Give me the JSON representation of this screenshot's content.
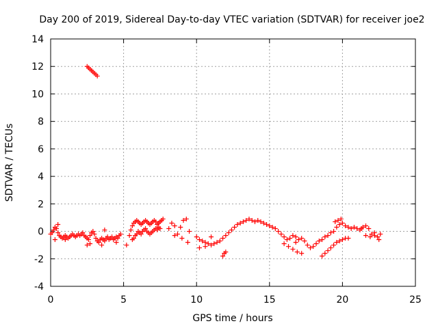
{
  "chart_data": {
    "type": "scatter",
    "title": "Day 200 of 2019, Sidereal Day-to-day VTEC variation (SDTVAR) for receiver joe2",
    "xlabel": "GPS time / hours",
    "ylabel": "SDTVAR / TECUs",
    "xlim": [
      0,
      25
    ],
    "ylim": [
      -4,
      14
    ],
    "xticks": [
      0,
      5,
      10,
      15,
      20,
      25
    ],
    "yticks": [
      -4,
      -2,
      0,
      2,
      4,
      6,
      8,
      10,
      12,
      14
    ],
    "grid": true,
    "marker": "+",
    "color": "#ff0000",
    "series": [
      {
        "name": "SDTVAR",
        "x": [
          2.5,
          2.6,
          2.7,
          2.8,
          2.9,
          3.0,
          3.1,
          3.2,
          0.0,
          0.1,
          0.2,
          0.3,
          0.4,
          0.5,
          0.6,
          0.7,
          0.8,
          0.9,
          1.0,
          1.1,
          1.2,
          1.3,
          1.4,
          1.5,
          1.6,
          1.7,
          1.8,
          1.9,
          2.0,
          2.1,
          2.2,
          2.3,
          2.4,
          2.5,
          2.6,
          2.7,
          2.8,
          2.9,
          3.0,
          3.1,
          3.2,
          3.3,
          3.4,
          3.5,
          3.6,
          3.7,
          3.8,
          3.9,
          4.0,
          4.1,
          4.2,
          4.3,
          4.4,
          4.5,
          4.6,
          4.7,
          4.8,
          0.3,
          0.5,
          1.0,
          2.5,
          2.7,
          3.5,
          3.7,
          4.5,
          5.4,
          5.5,
          5.6,
          5.7,
          5.8,
          5.9,
          6.0,
          6.1,
          6.2,
          6.3,
          6.4,
          6.5,
          6.6,
          6.7,
          6.8,
          6.9,
          7.0,
          7.1,
          7.2,
          7.3,
          7.4,
          7.5,
          7.6,
          7.7,
          5.6,
          5.7,
          5.8,
          5.9,
          6.0,
          6.1,
          6.2,
          6.3,
          6.4,
          6.5,
          6.6,
          6.7,
          6.8,
          6.9,
          7.0,
          7.1,
          7.2,
          7.3,
          7.4,
          7.5,
          5.2,
          8.1,
          8.3,
          8.5,
          8.7,
          8.9,
          9.1,
          9.3,
          9.5,
          8.5,
          9.0,
          9.4,
          10.0,
          10.2,
          10.4,
          10.6,
          10.8,
          11.0,
          11.2,
          11.4,
          11.6,
          11.8,
          12.0,
          12.2,
          12.4,
          12.6,
          12.8,
          13.0,
          13.2,
          13.4,
          13.6,
          13.8,
          14.0,
          14.2,
          14.4,
          14.6,
          14.8,
          15.0,
          15.2,
          15.4,
          11.8,
          11.9,
          12.0,
          10.2,
          10.6,
          11.0,
          15.6,
          15.8,
          16.0,
          16.2,
          16.4,
          16.6,
          16.8,
          17.0,
          17.2,
          17.4,
          17.6,
          17.8,
          18.0,
          18.2,
          18.4,
          18.6,
          18.8,
          19.0,
          19.2,
          19.4,
          19.6,
          19.8,
          20.0,
          20.2,
          20.4,
          20.6,
          20.8,
          21.0,
          21.2,
          21.4,
          21.6,
          21.8,
          22.0,
          22.2,
          22.4,
          22.6,
          16.0,
          16.3,
          16.6,
          16.9,
          17.2,
          16.8,
          18.6,
          18.8,
          19.0,
          19.2,
          19.4,
          19.6,
          19.8,
          20.0,
          20.2,
          20.4,
          21.3,
          21.6,
          21.9,
          22.2,
          22.5,
          19.5,
          19.7,
          19.9
        ],
        "y": [
          12.0,
          11.9,
          11.8,
          11.7,
          11.6,
          11.5,
          11.4,
          11.3,
          -0.2,
          -0.1,
          0.1,
          0.3,
          0.2,
          -0.1,
          -0.3,
          -0.4,
          -0.5,
          -0.4,
          -0.3,
          -0.4,
          -0.5,
          -0.4,
          -0.3,
          -0.2,
          -0.3,
          -0.4,
          -0.3,
          -0.2,
          -0.3,
          -0.2,
          -0.1,
          -0.3,
          -0.4,
          -0.5,
          -0.6,
          -0.3,
          -0.1,
          0.0,
          -0.2,
          -0.5,
          -0.7,
          -0.8,
          -0.6,
          -0.5,
          -0.6,
          -0.7,
          -0.5,
          -0.4,
          -0.6,
          -0.5,
          -0.4,
          -0.6,
          -0.5,
          -0.4,
          -0.5,
          -0.3,
          -0.2,
          -0.6,
          0.5,
          -0.6,
          -1.0,
          -0.9,
          -1.0,
          0.1,
          -0.8,
          -0.3,
          0.1,
          0.4,
          0.6,
          0.7,
          0.8,
          0.7,
          0.6,
          0.5,
          0.6,
          0.7,
          0.8,
          0.7,
          0.6,
          0.5,
          0.6,
          0.7,
          0.8,
          0.7,
          0.5,
          0.6,
          0.7,
          0.8,
          0.9,
          -0.6,
          -0.5,
          -0.3,
          -0.2,
          0.0,
          -0.1,
          -0.2,
          0.0,
          0.1,
          0.2,
          0.0,
          -0.1,
          -0.2,
          -0.1,
          0.0,
          0.1,
          0.2,
          0.1,
          0.3,
          0.2,
          -1.0,
          0.2,
          0.6,
          -0.3,
          -0.2,
          0.3,
          0.8,
          0.9,
          0.0,
          0.4,
          -0.5,
          -0.8,
          -0.4,
          -0.6,
          -0.7,
          -0.8,
          -0.9,
          -1.0,
          -0.9,
          -0.8,
          -0.7,
          -0.5,
          -0.3,
          -0.1,
          0.1,
          0.3,
          0.5,
          0.6,
          0.7,
          0.8,
          0.9,
          0.8,
          0.7,
          0.8,
          0.7,
          0.6,
          0.5,
          0.4,
          0.3,
          0.2,
          -1.8,
          -1.6,
          -1.5,
          -1.2,
          -1.1,
          -0.4,
          0.0,
          -0.2,
          -0.4,
          -0.6,
          -0.5,
          -0.3,
          -0.4,
          -0.6,
          -0.5,
          -0.7,
          -1.0,
          -1.2,
          -1.1,
          -0.9,
          -0.7,
          -0.6,
          -0.4,
          -0.3,
          -0.1,
          0.0,
          0.3,
          0.5,
          0.6,
          0.4,
          0.3,
          0.2,
          0.3,
          0.2,
          0.1,
          0.3,
          0.4,
          0.2,
          -0.2,
          -0.3,
          -0.4,
          -0.2,
          -0.9,
          -1.1,
          -1.3,
          -1.5,
          -1.6,
          -0.8,
          -1.8,
          -1.6,
          -1.4,
          -1.2,
          -1.0,
          -0.8,
          -0.7,
          -0.6,
          -0.5,
          -0.5,
          0.2,
          -0.3,
          -0.4,
          -0.1,
          -0.6,
          0.7,
          0.8,
          0.9
        ]
      }
    ]
  }
}
